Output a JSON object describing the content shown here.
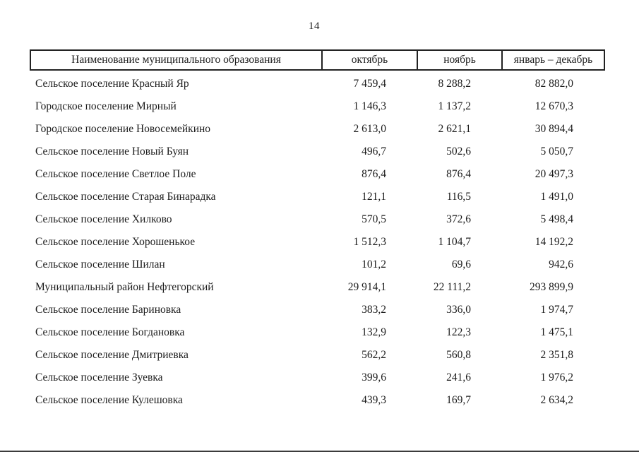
{
  "page": {
    "number": "14"
  },
  "table": {
    "columns": [
      "Наименование муниципального образования",
      "октябрь",
      "ноябрь",
      "январь – декабрь"
    ],
    "rows": [
      {
        "name": "Сельское поселение Красный Яр",
        "october": "7 459,4",
        "november": "8 288,2",
        "jan_dec": "82 882,0"
      },
      {
        "name": "Городское поселение Мирный",
        "october": "1 146,3",
        "november": "1 137,2",
        "jan_dec": "12 670,3"
      },
      {
        "name": "Городское поселение Новосемейкино",
        "october": "2 613,0",
        "november": "2 621,1",
        "jan_dec": "30 894,4"
      },
      {
        "name": "Сельское поселение Новый Буян",
        "october": "496,7",
        "november": "502,6",
        "jan_dec": "5 050,7"
      },
      {
        "name": "Сельское поселение Светлое Поле",
        "october": "876,4",
        "november": "876,4",
        "jan_dec": "20 497,3"
      },
      {
        "name": "Сельское поселение Старая Бинарадка",
        "october": "121,1",
        "november": "116,5",
        "jan_dec": "1 491,0"
      },
      {
        "name": "Сельское поселение Хилково",
        "october": "570,5",
        "november": "372,6",
        "jan_dec": "5 498,4"
      },
      {
        "name": "Сельское поселение Хорошенькое",
        "october": "1 512,3",
        "november": "1 104,7",
        "jan_dec": "14 192,2"
      },
      {
        "name": "Сельское поселение Шилан",
        "october": "101,2",
        "november": "69,6",
        "jan_dec": "942,6"
      },
      {
        "name": "Муниципальный район Нефтегорский",
        "october": "29 914,1",
        "november": "22 111,2",
        "jan_dec": "293 899,9"
      },
      {
        "name": "Сельское поселение Бариновка",
        "october": "383,2",
        "november": "336,0",
        "jan_dec": "1 974,7"
      },
      {
        "name": "Сельское поселение Богдановка",
        "october": "132,9",
        "november": "122,3",
        "jan_dec": "1 475,1"
      },
      {
        "name": "Сельское поселение Дмитриевка",
        "october": "562,2",
        "november": "560,8",
        "jan_dec": "2 351,8"
      },
      {
        "name": "Сельское поселение Зуевка",
        "october": "399,6",
        "november": "241,6",
        "jan_dec": "1 976,2"
      },
      {
        "name": "Сельское поселение Кулешовка",
        "october": "439,3",
        "november": "169,7",
        "jan_dec": "2 634,2"
      }
    ]
  }
}
